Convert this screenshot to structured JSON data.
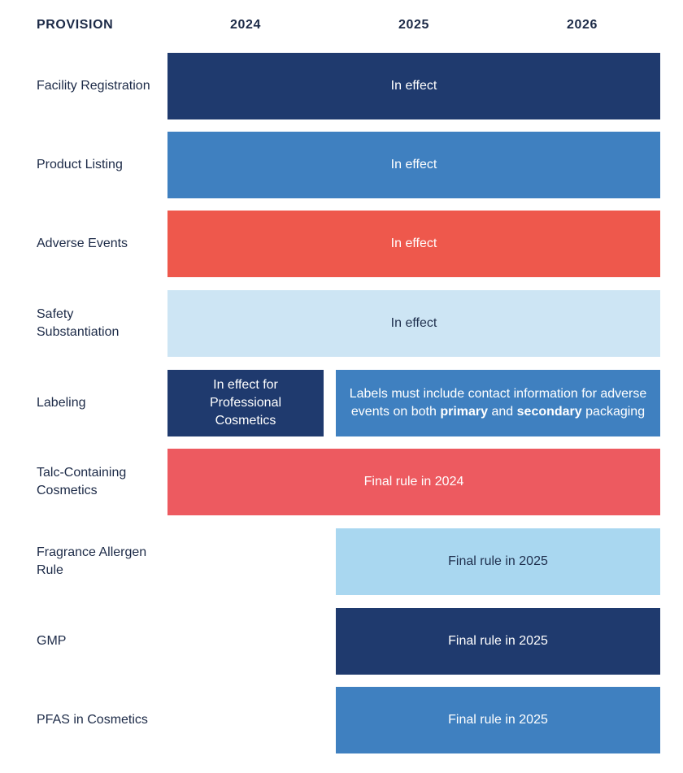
{
  "header": {
    "provision": "PROVISION",
    "years": [
      "2024",
      "2025",
      "2026"
    ]
  },
  "rows": [
    {
      "label": "Facility Registration",
      "bar": "In effect"
    },
    {
      "label": "Product Listing",
      "bar": "In effect"
    },
    {
      "label": "Adverse Events",
      "bar": "In effect"
    },
    {
      "label": "Safety Substantiation",
      "bar": "In effect"
    },
    {
      "label": "Labeling",
      "bar_a": "In effect for Professional Cosmetics",
      "bar_b": {
        "pre": "Labels must include contact information for adverse events on both",
        "bold1": "primary",
        "mid": "and",
        "bold2": "secondary",
        "post": "packaging"
      }
    },
    {
      "label": "Talc-Containing Cosmetics",
      "bar": "Final rule in 2024"
    },
    {
      "label": "Fragrance Allergen Rule",
      "bar": "Final rule in 2025"
    },
    {
      "label": "GMP",
      "bar": "Final rule in 2025"
    },
    {
      "label": "PFAS in Cosmetics",
      "bar": "Final rule in 2025"
    }
  ],
  "colors": {
    "navy": "#1f3a6e",
    "mid_blue": "#3f80c0",
    "red": "#ee584c",
    "red_alt": "#ed5a60",
    "pale_blue": "#cde5f4",
    "light_blue": "#a9d7f0",
    "text_dark": "#1c2a47"
  }
}
